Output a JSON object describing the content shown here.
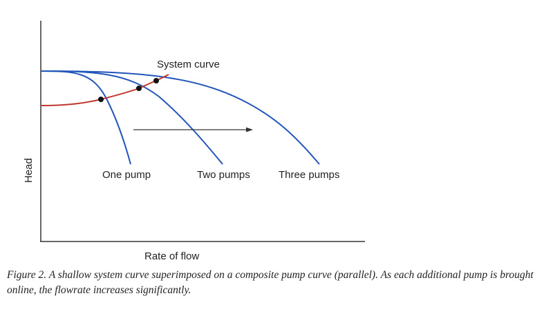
{
  "figure": {
    "labels": {
      "system_curve": "System curve",
      "one_pump": "One pump",
      "two_pumps": "Two pumps",
      "three_pumps": "Three pumps",
      "x_axis": "Rate of flow",
      "y_axis": "Head"
    },
    "colors": {
      "pump_curve": "#2255bb",
      "system_curve": "#c0362c",
      "axis": "#333333",
      "arrow": "#333333",
      "operating_point": "#111111"
    }
  },
  "caption": "Figure 2. A shallow system curve superimposed on a composite pump curve (parallel).  As each additional pump is brought online, the flowrate increases significantly."
}
